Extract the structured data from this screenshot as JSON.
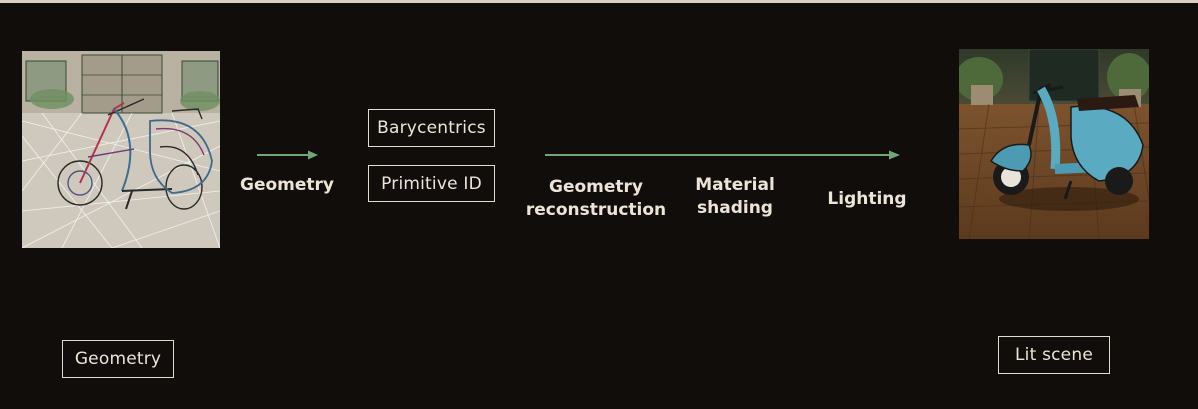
{
  "boxes": {
    "barycentrics": "Barycentrics",
    "primitive_id": "Primitive ID",
    "geometry": "Geometry",
    "lit_scene": "Lit scene"
  },
  "labels": {
    "geometry": "Geometry",
    "reconstruction_line1": "Geometry",
    "reconstruction_line2": "reconstruction",
    "shading_line1": "Material",
    "shading_line2": "shading",
    "lighting": "Lighting"
  },
  "colors": {
    "background": "#110d0a",
    "arrow": "#6fa77a",
    "box_border": "#e3dbcd",
    "text": "#ece4d6"
  },
  "images": {
    "left": "wireframe-scooter-image",
    "right": "lit-scooter-image"
  }
}
